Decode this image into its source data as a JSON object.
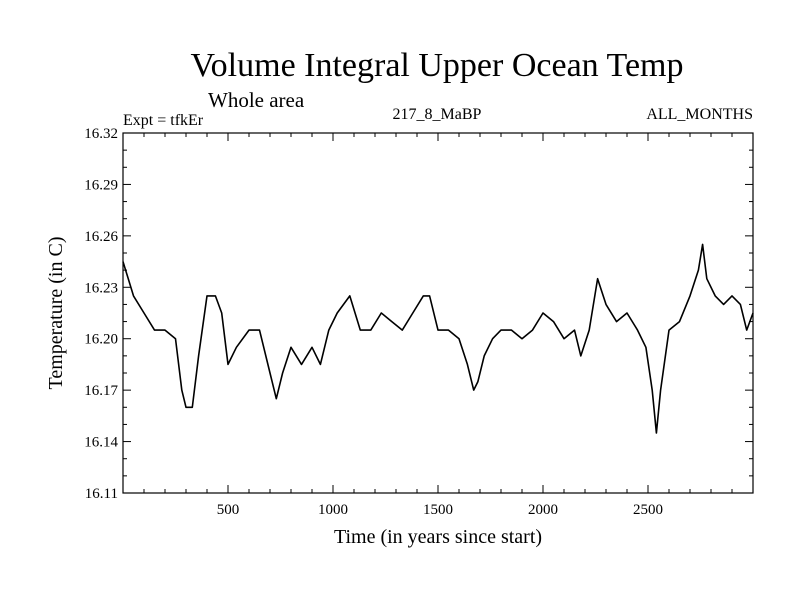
{
  "chart_data": {
    "type": "line",
    "title": "Volume Integral Upper Ocean Temp",
    "subtitle": "Whole area",
    "expt_label": "Expt = tfkEr",
    "run_label": "217_8_MaBP",
    "months_label": "ALL_MONTHS",
    "xlabel": "Time (in years since start)",
    "ylabel": "Temperature (in C)",
    "xlim": [
      0,
      3000
    ],
    "ylim": [
      16.11,
      16.32
    ],
    "x_ticks": [
      500,
      1000,
      1500,
      2000,
      2500
    ],
    "x_tick_labels": [
      "500",
      "1000",
      "1500",
      "2000",
      "2500"
    ],
    "y_ticks": [
      16.11,
      16.14,
      16.17,
      16.2,
      16.23,
      16.26,
      16.29,
      16.32
    ],
    "y_tick_labels": [
      "16.11",
      "16.14",
      "16.17",
      "16.20",
      "16.23",
      "16.26",
      "16.29",
      "16.32"
    ],
    "grid": false,
    "line_color": "#000000",
    "series": [
      {
        "x": [
          0,
          50,
          100,
          150,
          200,
          250,
          280,
          300,
          330,
          360,
          400,
          440,
          470,
          500,
          540,
          600,
          650,
          700,
          730,
          760,
          800,
          850,
          900,
          940,
          980,
          1020,
          1080,
          1130,
          1180,
          1230,
          1280,
          1330,
          1380,
          1430,
          1460,
          1500,
          1550,
          1600,
          1640,
          1670,
          1690,
          1720,
          1760,
          1800,
          1850,
          1900,
          1950,
          2000,
          2050,
          2100,
          2150,
          2180,
          2220,
          2260,
          2300,
          2350,
          2400,
          2450,
          2490,
          2520,
          2540,
          2560,
          2600,
          2650,
          2700,
          2740,
          2760,
          2780,
          2820,
          2860,
          2900,
          2940,
          2970,
          3000
        ],
        "y": [
          16.245,
          16.225,
          16.215,
          16.205,
          16.205,
          16.2,
          16.17,
          16.16,
          16.16,
          16.19,
          16.225,
          16.225,
          16.215,
          16.185,
          16.195,
          16.205,
          16.205,
          16.18,
          16.165,
          16.18,
          16.195,
          16.185,
          16.195,
          16.185,
          16.205,
          16.215,
          16.225,
          16.205,
          16.205,
          16.215,
          16.21,
          16.205,
          16.215,
          16.225,
          16.225,
          16.205,
          16.205,
          16.2,
          16.185,
          16.17,
          16.175,
          16.19,
          16.2,
          16.205,
          16.205,
          16.2,
          16.205,
          16.215,
          16.21,
          16.2,
          16.205,
          16.19,
          16.205,
          16.235,
          16.22,
          16.21,
          16.215,
          16.205,
          16.195,
          16.17,
          16.145,
          16.17,
          16.205,
          16.21,
          16.225,
          16.24,
          16.255,
          16.235,
          16.225,
          16.22,
          16.225,
          16.22,
          16.205,
          16.215
        ]
      }
    ]
  }
}
